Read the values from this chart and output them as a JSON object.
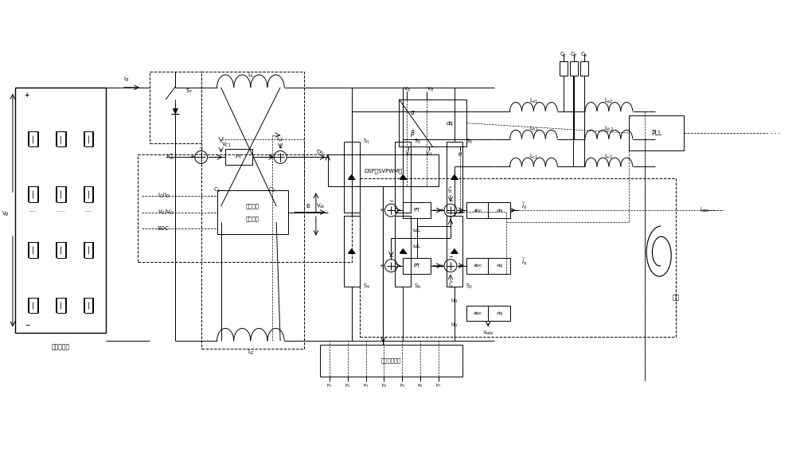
{
  "bg_color": "#ffffff",
  "line_color": "#000000",
  "figsize": [
    10.0,
    5.69
  ],
  "dpi": 100,
  "labels": {
    "lithium_battery": "锂电池系统",
    "grid": "电网",
    "isolation_drive": "隔离驱动电路",
    "dsp": "DSP（SVPWM）",
    "battery_param_1": "电池参数",
    "battery_param_2": "越限判断"
  }
}
